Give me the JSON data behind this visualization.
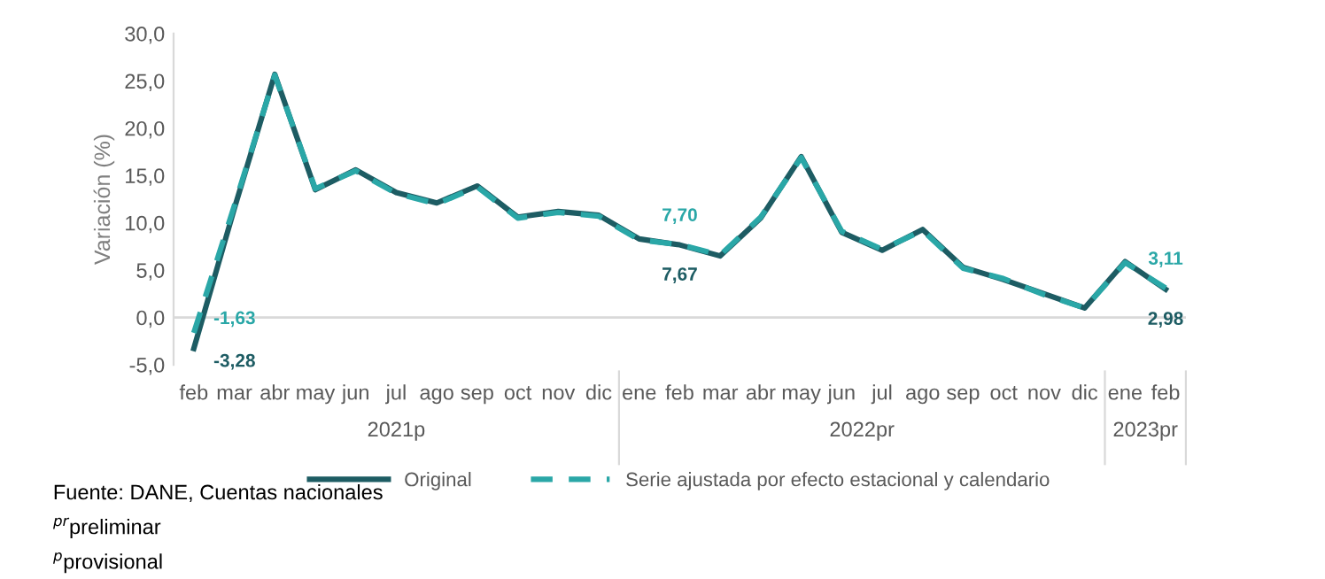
{
  "chart_data": {
    "type": "line",
    "ylabel": "Variación (%)",
    "categories": [
      "feb",
      "mar",
      "abr",
      "may",
      "jun",
      "jul",
      "ago",
      "sep",
      "oct",
      "nov",
      "dic",
      "ene",
      "feb",
      "mar",
      "abr",
      "may",
      "jun",
      "jul",
      "ago",
      "sep",
      "oct",
      "nov",
      "dic",
      "ene",
      "feb"
    ],
    "series": [
      {
        "name": "Original",
        "color": "#1d5c63",
        "line_style": "solid",
        "values": [
          -3.28,
          11.5,
          25.7,
          13.5,
          15.6,
          13.2,
          12.1,
          13.9,
          10.6,
          11.2,
          10.8,
          8.3,
          7.67,
          6.5,
          10.5,
          17.0,
          9.0,
          7.1,
          9.3,
          5.3,
          4.0,
          2.5,
          1.0,
          5.9,
          2.98
        ],
        "value_labels": [
          "-3,28",
          null,
          null,
          null,
          null,
          null,
          null,
          null,
          null,
          null,
          null,
          null,
          "7,67",
          null,
          null,
          null,
          null,
          null,
          null,
          null,
          null,
          null,
          null,
          null,
          "2,98"
        ]
      },
      {
        "name": "Serie ajustada por efecto estacional y calendario",
        "color": "#2aa7a7",
        "line_style": "dashed",
        "values": [
          -1.63,
          11.8,
          25.6,
          13.6,
          15.5,
          13.1,
          12.0,
          13.8,
          10.5,
          11.1,
          10.7,
          8.2,
          7.7,
          6.6,
          10.6,
          16.9,
          9.1,
          7.2,
          9.2,
          5.2,
          4.1,
          2.4,
          1.0,
          5.8,
          3.11
        ],
        "value_labels": [
          "-1,63",
          null,
          null,
          null,
          null,
          null,
          null,
          null,
          null,
          null,
          null,
          null,
          "7,70",
          null,
          null,
          null,
          null,
          null,
          null,
          null,
          null,
          null,
          null,
          null,
          "3,11"
        ]
      }
    ],
    "ylim": [
      -5,
      30
    ],
    "yticks": [
      {
        "value": -5,
        "label": "-5,0"
      },
      {
        "value": 0,
        "label": "0,0"
      },
      {
        "value": 5,
        "label": "5,0"
      },
      {
        "value": 10,
        "label": "10,0"
      },
      {
        "value": 15,
        "label": "15,0"
      },
      {
        "value": 20,
        "label": "20,0"
      },
      {
        "value": 25,
        "label": "25,0"
      },
      {
        "value": 30,
        "label": "30,0"
      }
    ],
    "ref_lines": [
      {
        "axis": "y",
        "value": 0,
        "color": "#d9d9d9"
      }
    ],
    "grid": false,
    "legend": "bottom",
    "marker": "none",
    "annotations": [
      "2021p",
      "2022pr",
      "2023pr",
      "Fuente: DANE, Cuentas nacionales",
      "$^{pr}$preliminar",
      "$^{p}$provisional"
    ]
  }
}
